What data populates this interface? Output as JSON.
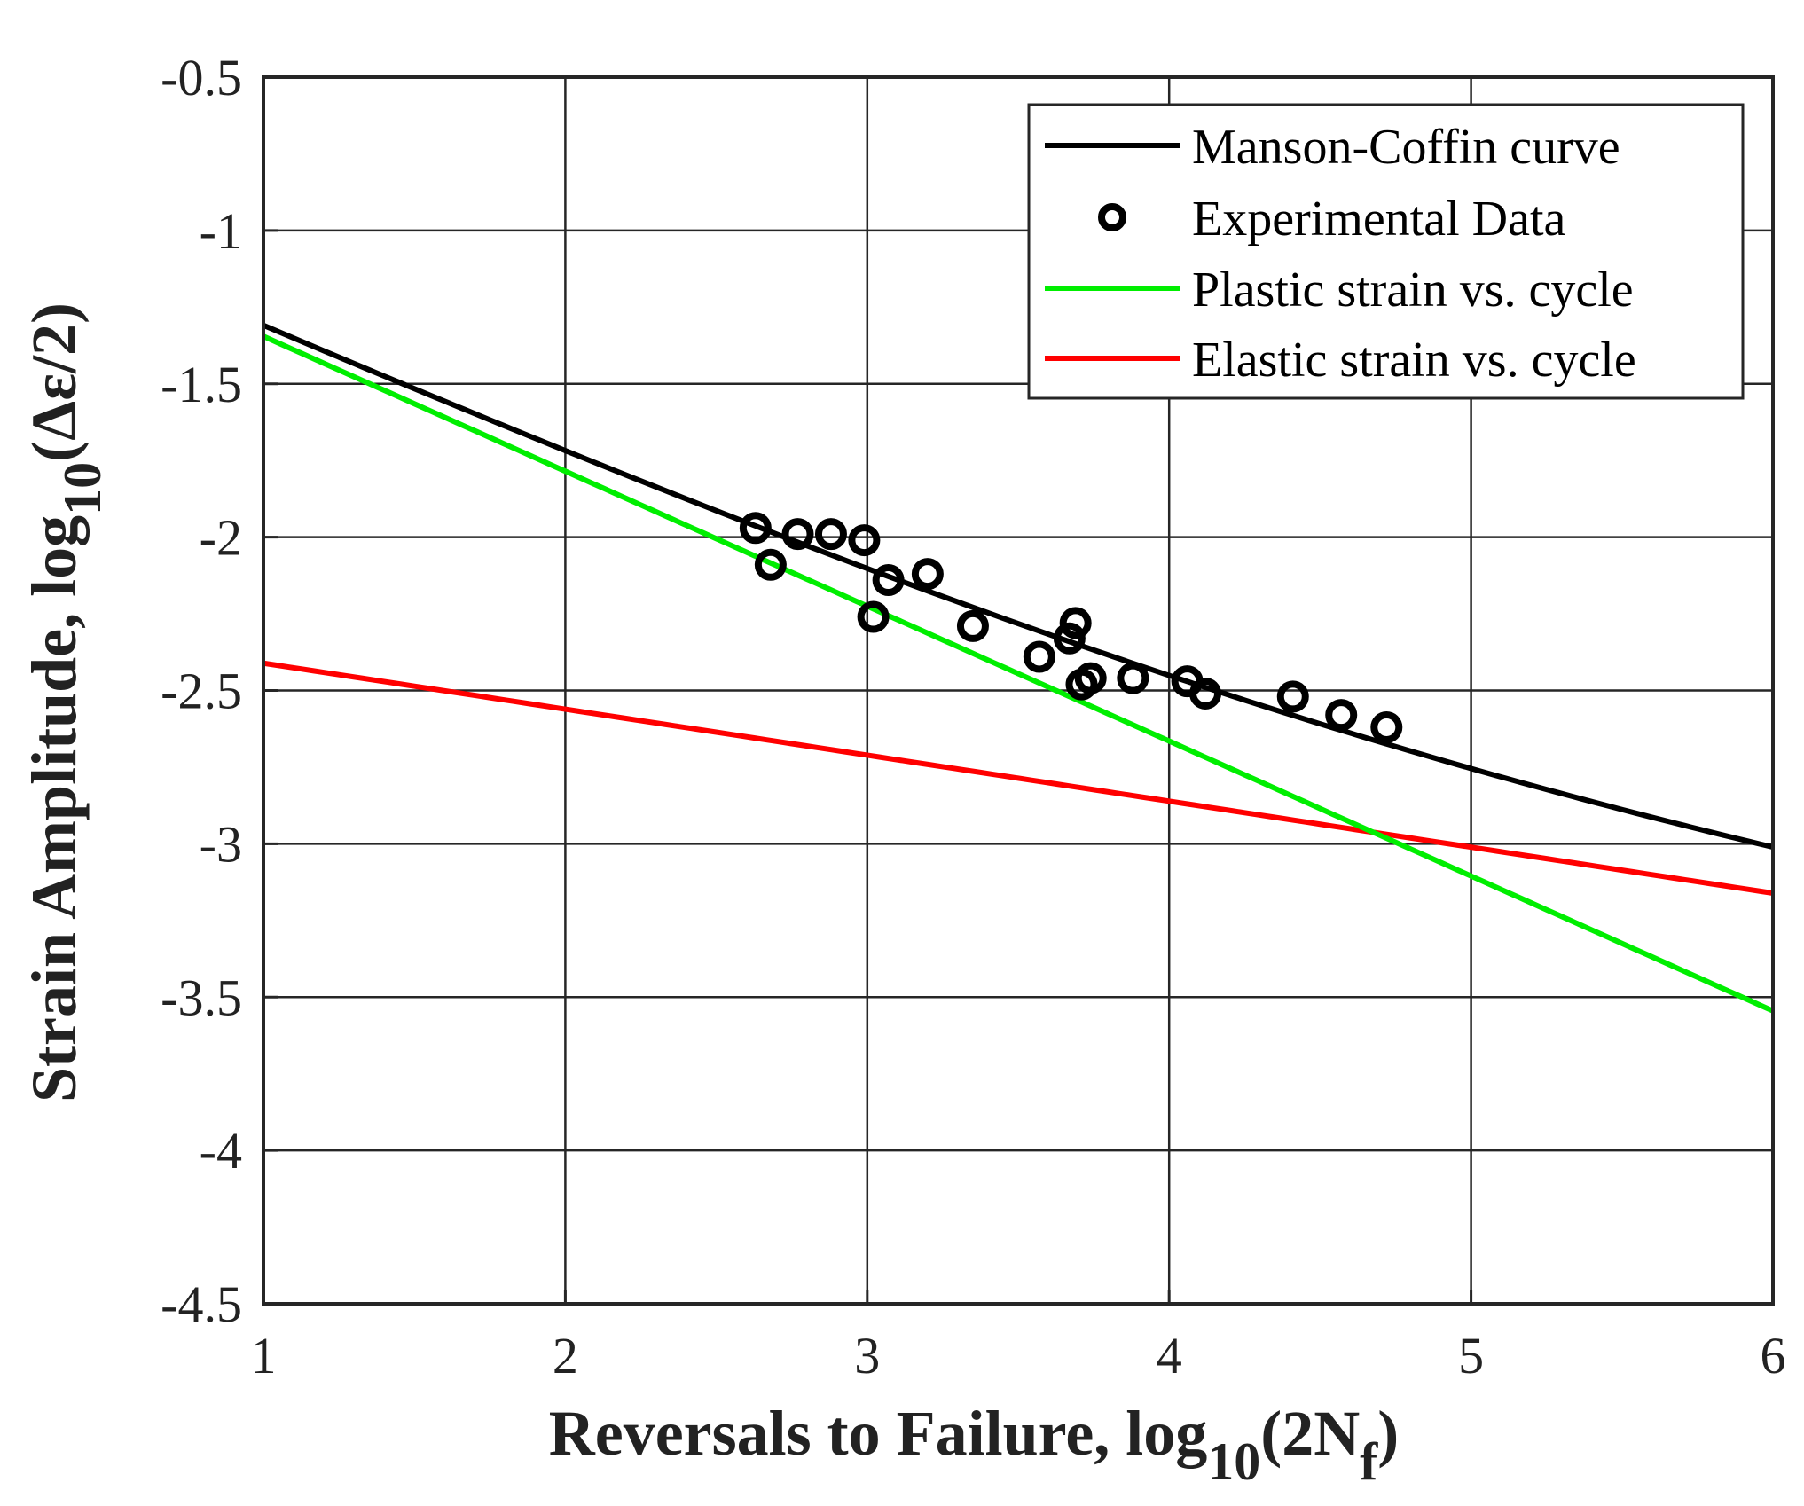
{
  "chart_data": {
    "type": "line",
    "title": "",
    "xlabel": {
      "main": "Reversals to Failure, log",
      "sub": "10",
      "paren_open": "(2N",
      "sub2": "f",
      "paren_close": ")"
    },
    "ylabel": {
      "main": "Strain Amplitude, log",
      "sub": "10",
      "rest": "(Δε/2)"
    },
    "xlim": [
      1,
      6
    ],
    "ylim": [
      -4.5,
      -0.5
    ],
    "xticks": [
      1,
      2,
      3,
      4,
      5,
      6
    ],
    "xtick_labels": [
      "1",
      "2",
      "3",
      "4",
      "5",
      "6"
    ],
    "yticks": [
      -0.5,
      -1,
      -1.5,
      -2,
      -2.5,
      -3,
      -3.5,
      -4,
      -4.5
    ],
    "ytick_labels": [
      "-0.5",
      "-1",
      "-1.5",
      "-2",
      "-2.5",
      "-3",
      "-3.5",
      "-4",
      "-4.5"
    ],
    "grid": true,
    "legend_position": "top-right",
    "legend": [
      {
        "label": "Manson-Coffin curve",
        "kind": "line",
        "color": "#000000"
      },
      {
        "label": "Experimental Data",
        "kind": "marker",
        "color": "#000000"
      },
      {
        "label": "Plastic strain vs. cycle",
        "kind": "line",
        "color": "#00ee00"
      },
      {
        "label": "Elastic strain vs. cycle",
        "kind": "line",
        "color": "#ff0000"
      }
    ],
    "series": [
      {
        "name": "Elastic strain vs. cycle",
        "color": "#ff0000",
        "model": "linear",
        "intercept": -2.261,
        "slope": -0.15
      },
      {
        "name": "Plastic strain vs. cycle",
        "color": "#00ee00",
        "model": "linear",
        "intercept": -0.905,
        "slope": -0.44
      },
      {
        "name": "Manson-Coffin curve",
        "color": "#000000",
        "model": "sum_of_power_laws",
        "components": [
          "Elastic strain vs. cycle",
          "Plastic strain vs. cycle"
        ]
      },
      {
        "name": "Experimental Data",
        "color": "#000000",
        "model": "scatter",
        "points": [
          [
            2.63,
            -1.97
          ],
          [
            2.68,
            -2.09
          ],
          [
            2.77,
            -1.99
          ],
          [
            2.88,
            -1.99
          ],
          [
            2.99,
            -2.01
          ],
          [
            3.02,
            -2.26
          ],
          [
            3.07,
            -2.14
          ],
          [
            3.2,
            -2.12
          ],
          [
            3.35,
            -2.29
          ],
          [
            3.57,
            -2.39
          ],
          [
            3.67,
            -2.33
          ],
          [
            3.69,
            -2.28
          ],
          [
            3.71,
            -2.48
          ],
          [
            3.74,
            -2.46
          ],
          [
            3.88,
            -2.46
          ],
          [
            4.06,
            -2.47
          ],
          [
            4.12,
            -2.51
          ],
          [
            4.41,
            -2.52
          ],
          [
            4.57,
            -2.58
          ],
          [
            4.72,
            -2.62
          ]
        ]
      }
    ]
  }
}
